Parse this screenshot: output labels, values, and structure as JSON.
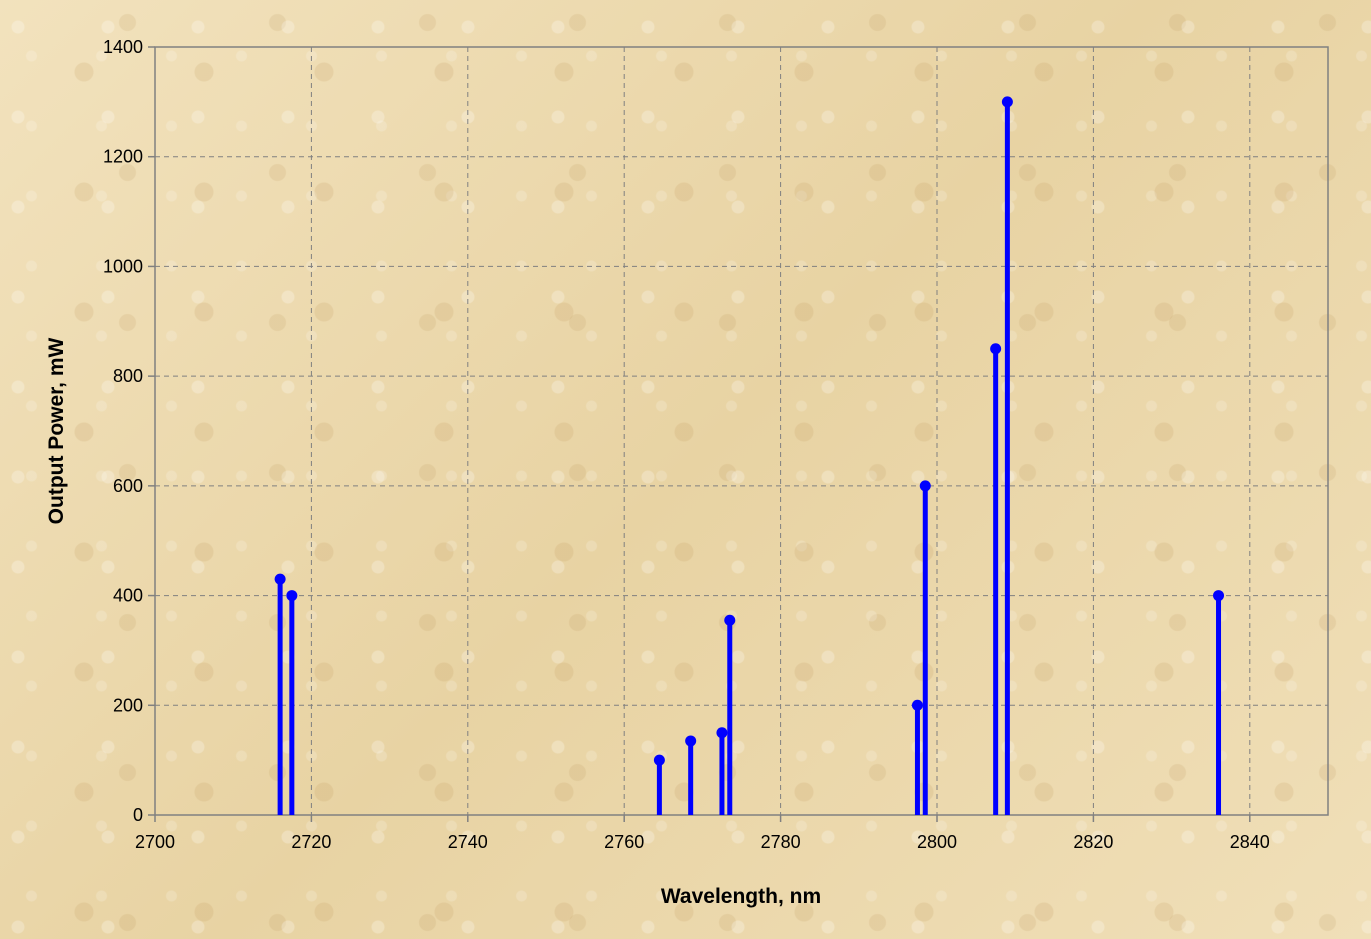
{
  "chart_data": {
    "type": "scatter",
    "style": "stem",
    "title": "",
    "xlabel": "Wavelength, nm",
    "ylabel": "Output Power, mW",
    "xlim": [
      2700,
      2850
    ],
    "ylim": [
      0,
      1400
    ],
    "x_ticks": [
      "2700",
      "2720",
      "2740",
      "2760",
      "2780",
      "2800",
      "2820",
      "2840"
    ],
    "y_ticks": [
      "0",
      "200",
      "400",
      "600",
      "800",
      "1000",
      "1200",
      "1400"
    ],
    "grid": true,
    "legend": "none",
    "series": [
      {
        "color": "#0000ff",
        "points": [
          {
            "x": 2716,
            "y": 430
          },
          {
            "x": 2717.5,
            "y": 400
          },
          {
            "x": 2764.5,
            "y": 100
          },
          {
            "x": 2768.5,
            "y": 135
          },
          {
            "x": 2772.5,
            "y": 150
          },
          {
            "x": 2773.5,
            "y": 355
          },
          {
            "x": 2797.5,
            "y": 200
          },
          {
            "x": 2798.5,
            "y": 600
          },
          {
            "x": 2807.5,
            "y": 850
          },
          {
            "x": 2809,
            "y": 1300
          },
          {
            "x": 2836,
            "y": 400
          }
        ]
      }
    ]
  }
}
